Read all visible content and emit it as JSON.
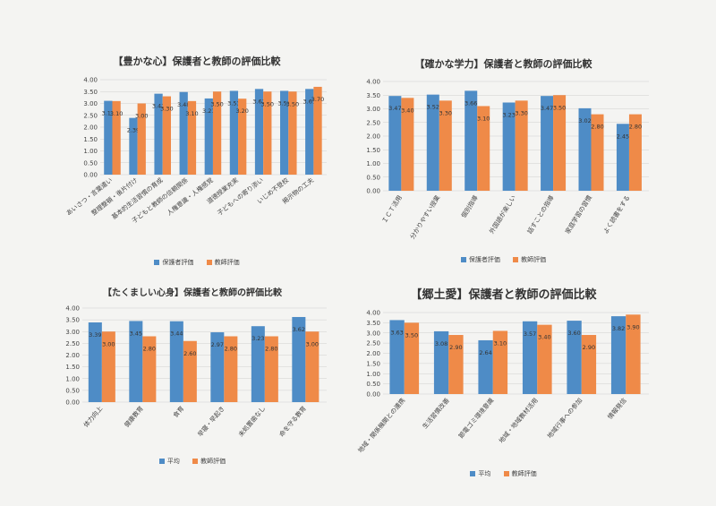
{
  "colors": {
    "blue": "#4e8cc6",
    "orange": "#ef8a48",
    "axis_text": "#444444",
    "grid": "#cfcfcf",
    "value_text": "#333333"
  },
  "chart_data": [
    {
      "type": "bar",
      "title": "【豊かな心】保護者と教師の評価比較",
      "categories": [
        "あいさつ・言葉遣い",
        "整理整頓・後片付け",
        "基本的生活習慣の育成",
        "子どもと教師の信頼関係",
        "人権意識・人権感覚",
        "道徳授業充実",
        "子どもへの寄り添い",
        "いじめ不登校",
        "掲示物の工夫"
      ],
      "series": [
        {
          "name": "保護者評価",
          "values": [
            3.11,
            2.39,
            3.41,
            3.48,
            3.21,
            3.53,
            3.61,
            3.53,
            3.61
          ]
        },
        {
          "name": "教師評価",
          "values": [
            3.1,
            3.0,
            3.3,
            3.1,
            3.5,
            3.2,
            3.5,
            3.5,
            3.7
          ]
        }
      ],
      "value_labels": [
        [
          "3.11",
          "2.39",
          "3.41",
          "3.48",
          "3.21",
          "3.53",
          "3.61",
          "3.53",
          "3.61"
        ],
        [
          "3.10",
          "3.00",
          "3.30",
          "3.10",
          "3.50",
          "3.20",
          "3.50",
          "3.50",
          "3.70"
        ]
      ],
      "ylim": [
        0,
        4
      ],
      "yticks": [
        "0.00",
        "0.50",
        "1.00",
        "1.50",
        "2.00",
        "2.50",
        "3.00",
        "3.50",
        "4.00"
      ]
    },
    {
      "type": "bar",
      "title": "【確かな学力】保護者と教師の評価比較",
      "categories": [
        "ＩＣＴ活用",
        "分かりやすい授業",
        "個別指導",
        "外国語が楽しい",
        "話すことの指導",
        "家庭学習の習慣",
        "よく読書をする"
      ],
      "series": [
        {
          "name": "保護者評価",
          "values": [
            3.47,
            3.52,
            3.66,
            3.23,
            3.47,
            3.02,
            2.45
          ]
        },
        {
          "name": "教師評価",
          "values": [
            3.4,
            3.3,
            3.1,
            3.3,
            3.5,
            2.8,
            2.8
          ]
        }
      ],
      "value_labels": [
        [
          "3.47",
          "3.52",
          "3.66",
          "3.23",
          "3.47",
          "3.02",
          "2.45"
        ],
        [
          "3.40",
          "3.30",
          "3.10",
          "3.30",
          "3.50",
          "2.80",
          "2.80"
        ]
      ],
      "ylim": [
        0,
        4
      ],
      "yticks": [
        "0.00",
        "0.50",
        "1.00",
        "1.50",
        "2.00",
        "2.50",
        "3.00",
        "3.50",
        "4.00"
      ]
    },
    {
      "type": "bar",
      "title": "【たくましい心身】保護者と教師の評価比較",
      "categories": [
        "体力向上",
        "健康教育",
        "食育",
        "早寝・早起き",
        "未処置歯なし",
        "命を守る教育"
      ],
      "series": [
        {
          "name": "平均",
          "values": [
            3.39,
            3.45,
            3.44,
            2.97,
            3.23,
            3.62
          ]
        },
        {
          "name": "教師評価",
          "values": [
            3.0,
            2.8,
            2.6,
            2.8,
            2.8,
            3.0
          ]
        }
      ],
      "value_labels": [
        [
          "3.39",
          "3.45",
          "3.44",
          "2.97",
          "3.23",
          "3.62"
        ],
        [
          "3.00",
          "2.80",
          "2.60",
          "2.80",
          "2.80",
          "3.00"
        ]
      ],
      "ylim": [
        0,
        4
      ],
      "yticks": [
        "0.00",
        "0.50",
        "1.00",
        "1.50",
        "2.00",
        "2.50",
        "3.00",
        "3.50",
        "4.00"
      ]
    },
    {
      "type": "bar",
      "title": "【郷土愛】保護者と教師の評価比較",
      "categories": [
        "地域・関係機関との連携",
        "生活習慣改善",
        "節電ゴミ環境意識",
        "地域・地域教材活用",
        "地域行事への参加",
        "情報発信"
      ],
      "series": [
        {
          "name": "平均",
          "values": [
            3.63,
            3.08,
            2.64,
            3.57,
            3.6,
            3.82
          ]
        },
        {
          "name": "教師評価",
          "values": [
            3.5,
            2.9,
            3.1,
            3.4,
            2.9,
            3.9
          ]
        }
      ],
      "value_labels": [
        [
          "3.63",
          "3.08",
          "2.64",
          "3.57",
          "3.60",
          "3.82"
        ],
        [
          "3.50",
          "2.90",
          "3.10",
          "3.40",
          "2.90",
          "3.90"
        ]
      ],
      "ylim": [
        0,
        4
      ],
      "yticks": [
        "0.00",
        "0.50",
        "1.00",
        "1.50",
        "2.00",
        "2.50",
        "3.00",
        "3.50",
        "4.00"
      ]
    }
  ]
}
